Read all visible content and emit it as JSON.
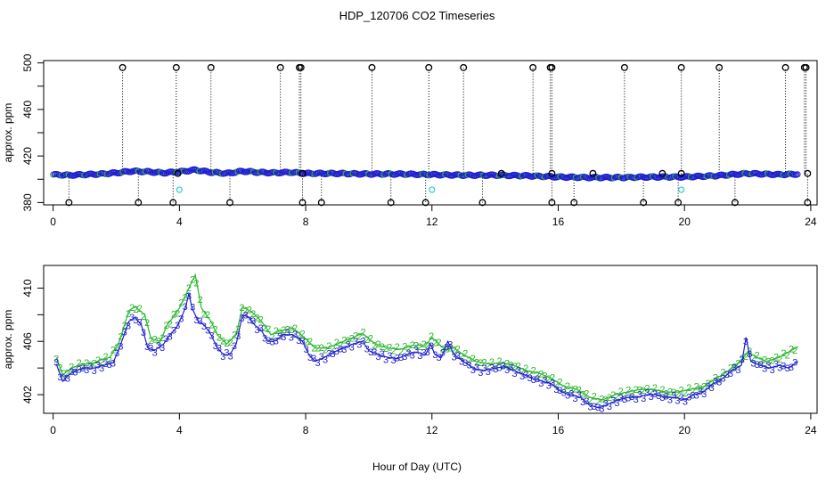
{
  "chart_data": [
    {
      "type": "scatter",
      "panel": "top",
      "title": "HDP_120706  CO2 Timeseries",
      "xlabel": "",
      "ylabel": "approx. ppm",
      "xlim": [
        -0.3,
        24.2
      ],
      "ylim": [
        378,
        502
      ],
      "xticks": [
        0,
        4,
        8,
        12,
        16,
        20,
        24
      ],
      "yticks": [
        380,
        420,
        460,
        500
      ],
      "yticks_minor": [
        400,
        440,
        480
      ],
      "colors": {
        "series_main": "#1f1fd0",
        "series_alt": "#2ab52a",
        "outlier": "#000000",
        "cyan": "#40d0d0"
      },
      "baseline": [
        [
          0.0,
          404.0
        ],
        [
          0.5,
          403.5
        ],
        [
          1.0,
          404.0
        ],
        [
          1.5,
          404.5
        ],
        [
          2.0,
          405.5
        ],
        [
          2.5,
          407.0
        ],
        [
          3.0,
          406.5
        ],
        [
          3.5,
          405.5
        ],
        [
          4.0,
          406.5
        ],
        [
          4.5,
          408.0
        ],
        [
          5.0,
          406.0
        ],
        [
          5.5,
          405.0
        ],
        [
          6.0,
          407.0
        ],
        [
          6.5,
          406.0
        ],
        [
          7.0,
          405.5
        ],
        [
          7.5,
          406.0
        ],
        [
          8.0,
          405.0
        ],
        [
          8.5,
          405.0
        ],
        [
          9.0,
          405.0
        ],
        [
          10.0,
          404.5
        ],
        [
          11.0,
          404.5
        ],
        [
          12.0,
          404.0
        ],
        [
          13.0,
          403.5
        ],
        [
          14.0,
          403.5
        ],
        [
          15.0,
          403.0
        ],
        [
          16.0,
          402.0
        ],
        [
          17.0,
          401.5
        ],
        [
          18.0,
          401.5
        ],
        [
          19.0,
          402.0
        ],
        [
          20.0,
          402.0
        ],
        [
          21.0,
          403.0
        ],
        [
          22.0,
          405.0
        ],
        [
          23.0,
          404.0
        ],
        [
          23.6,
          404.5
        ]
      ],
      "high_outliers": [
        2.2,
        3.9,
        5.0,
        7.2,
        7.8,
        7.85,
        10.1,
        11.9,
        13.0,
        15.2,
        15.75,
        15.8,
        18.1,
        19.9,
        21.1,
        23.2,
        23.8,
        23.85
      ],
      "low_outliers": [
        0.5,
        2.7,
        3.8,
        5.6,
        7.9,
        8.5,
        10.7,
        11.8,
        13.6,
        15.8,
        16.5,
        18.7,
        19.8,
        21.6,
        23.9
      ],
      "mid_outliers": [
        [
          3.95,
          405
        ],
        [
          14.2,
          405
        ],
        [
          15.8,
          405
        ],
        [
          17.1,
          405
        ],
        [
          19.3,
          405
        ],
        [
          19.9,
          405
        ],
        [
          23.9,
          405
        ],
        [
          7.9,
          405
        ]
      ],
      "cyan_points": [
        [
          4.0,
          391
        ],
        [
          12.0,
          391
        ],
        [
          19.9,
          391
        ]
      ]
    },
    {
      "type": "line",
      "panel": "bottom",
      "xlabel": "Hour of Day (UTC)",
      "ylabel": "approx. ppm",
      "xlim": [
        -0.3,
        24.2
      ],
      "ylim": [
        400.6,
        411.7
      ],
      "xticks": [
        0,
        4,
        8,
        12,
        16,
        20,
        24
      ],
      "yticks": [
        402,
        406,
        410
      ],
      "yticks_minor": [
        404,
        408
      ],
      "series": [
        {
          "name": "3",
          "marker": "3",
          "color": "#1f1fd0",
          "points": [
            [
              0.1,
              404.3
            ],
            [
              0.3,
              403.0
            ],
            [
              0.5,
              403.5
            ],
            [
              0.7,
              403.8
            ],
            [
              1.0,
              404.0
            ],
            [
              1.3,
              404.0
            ],
            [
              1.6,
              404.2
            ],
            [
              1.9,
              404.4
            ],
            [
              2.1,
              405.5
            ],
            [
              2.4,
              407.5
            ],
            [
              2.6,
              407.8
            ],
            [
              2.8,
              407.2
            ],
            [
              3.0,
              405.5
            ],
            [
              3.2,
              405.3
            ],
            [
              3.5,
              405.8
            ],
            [
              3.7,
              406.5
            ],
            [
              3.9,
              407.0
            ],
            [
              4.1,
              408.0
            ],
            [
              4.2,
              408.6
            ],
            [
              4.3,
              409.6
            ],
            [
              4.4,
              408.5
            ],
            [
              4.6,
              407.5
            ],
            [
              4.8,
              407.2
            ],
            [
              5.0,
              406.5
            ],
            [
              5.2,
              405.5
            ],
            [
              5.4,
              405.0
            ],
            [
              5.6,
              405.0
            ],
            [
              5.8,
              405.8
            ],
            [
              6.0,
              408.0
            ],
            [
              6.2,
              407.8
            ],
            [
              6.4,
              407.2
            ],
            [
              6.6,
              406.8
            ],
            [
              6.8,
              406.0
            ],
            [
              7.0,
              406.0
            ],
            [
              7.3,
              406.5
            ],
            [
              7.6,
              406.5
            ],
            [
              7.9,
              406.0
            ],
            [
              8.1,
              405.0
            ],
            [
              8.3,
              404.5
            ],
            [
              8.6,
              404.8
            ],
            [
              8.9,
              405.2
            ],
            [
              9.2,
              405.5
            ],
            [
              9.5,
              405.8
            ],
            [
              9.8,
              406.0
            ],
            [
              10.0,
              405.3
            ],
            [
              10.3,
              405.0
            ],
            [
              10.6,
              404.8
            ],
            [
              10.9,
              404.7
            ],
            [
              11.2,
              405.0
            ],
            [
              11.5,
              405.2
            ],
            [
              11.8,
              405.0
            ],
            [
              11.95,
              405.8
            ],
            [
              12.1,
              405.0
            ],
            [
              12.3,
              404.8
            ],
            [
              12.5,
              406.0
            ],
            [
              12.7,
              405.0
            ],
            [
              13.0,
              404.5
            ],
            [
              13.3,
              404.0
            ],
            [
              13.6,
              403.8
            ],
            [
              14.0,
              404.0
            ],
            [
              14.3,
              404.1
            ],
            [
              14.6,
              403.8
            ],
            [
              14.9,
              403.5
            ],
            [
              15.2,
              403.2
            ],
            [
              15.5,
              403.0
            ],
            [
              15.8,
              402.8
            ],
            [
              16.1,
              402.2
            ],
            [
              16.4,
              402.0
            ],
            [
              16.7,
              401.8
            ],
            [
              17.0,
              401.2
            ],
            [
              17.3,
              401.0
            ],
            [
              17.6,
              401.3
            ],
            [
              17.9,
              401.6
            ],
            [
              18.2,
              401.8
            ],
            [
              18.5,
              401.8
            ],
            [
              18.8,
              402.0
            ],
            [
              19.1,
              402.0
            ],
            [
              19.4,
              401.8
            ],
            [
              19.7,
              401.8
            ],
            [
              20.0,
              401.6
            ],
            [
              20.3,
              402.0
            ],
            [
              20.6,
              402.2
            ],
            [
              20.9,
              402.8
            ],
            [
              21.2,
              403.2
            ],
            [
              21.5,
              403.8
            ],
            [
              21.8,
              404.2
            ],
            [
              21.95,
              406.3
            ],
            [
              22.1,
              404.5
            ],
            [
              22.4,
              404.2
            ],
            [
              22.7,
              404.0
            ],
            [
              23.0,
              404.2
            ],
            [
              23.3,
              404.0
            ],
            [
              23.6,
              404.5
            ]
          ]
        },
        {
          "name": "2",
          "marker": "2",
          "color": "#2ab52a",
          "points": [
            [
              0.1,
              404.8
            ],
            [
              0.3,
              403.5
            ],
            [
              0.6,
              404.0
            ],
            [
              0.9,
              404.3
            ],
            [
              1.2,
              404.3
            ],
            [
              1.5,
              404.6
            ],
            [
              1.8,
              404.8
            ],
            [
              2.1,
              406.0
            ],
            [
              2.4,
              408.3
            ],
            [
              2.6,
              408.6
            ],
            [
              2.9,
              408.0
            ],
            [
              3.1,
              406.2
            ],
            [
              3.4,
              406.0
            ],
            [
              3.6,
              407.2
            ],
            [
              3.8,
              407.8
            ],
            [
              4.0,
              408.5
            ],
            [
              4.3,
              410.0
            ],
            [
              4.5,
              411.0
            ],
            [
              4.7,
              408.5
            ],
            [
              5.0,
              407.5
            ],
            [
              5.2,
              406.5
            ],
            [
              5.5,
              405.8
            ],
            [
              5.8,
              406.5
            ],
            [
              6.0,
              408.6
            ],
            [
              6.3,
              408.2
            ],
            [
              6.6,
              407.5
            ],
            [
              6.9,
              406.5
            ],
            [
              7.2,
              406.8
            ],
            [
              7.6,
              407.0
            ],
            [
              8.0,
              406.2
            ],
            [
              8.3,
              405.5
            ],
            [
              8.7,
              405.5
            ],
            [
              9.0,
              405.8
            ],
            [
              9.4,
              406.2
            ],
            [
              9.8,
              406.6
            ],
            [
              10.2,
              405.8
            ],
            [
              10.6,
              405.5
            ],
            [
              11.0,
              405.4
            ],
            [
              11.4,
              405.7
            ],
            [
              11.8,
              405.7
            ],
            [
              12.0,
              406.3
            ],
            [
              12.4,
              405.4
            ],
            [
              12.7,
              405.5
            ],
            [
              13.0,
              405.0
            ],
            [
              13.4,
              404.5
            ],
            [
              13.8,
              404.3
            ],
            [
              14.2,
              404.4
            ],
            [
              14.6,
              404.2
            ],
            [
              15.0,
              403.8
            ],
            [
              15.4,
              403.6
            ],
            [
              15.8,
              403.2
            ],
            [
              16.2,
              402.6
            ],
            [
              16.6,
              402.4
            ],
            [
              17.0,
              401.8
            ],
            [
              17.4,
              401.6
            ],
            [
              17.8,
              402.0
            ],
            [
              18.2,
              402.2
            ],
            [
              18.6,
              402.4
            ],
            [
              19.0,
              402.4
            ],
            [
              19.4,
              402.2
            ],
            [
              19.8,
              402.2
            ],
            [
              20.2,
              402.4
            ],
            [
              20.6,
              402.6
            ],
            [
              21.0,
              403.2
            ],
            [
              21.4,
              403.8
            ],
            [
              21.8,
              404.6
            ],
            [
              22.0,
              405.2
            ],
            [
              22.3,
              404.8
            ],
            [
              22.6,
              404.5
            ],
            [
              23.0,
              404.8
            ],
            [
              23.3,
              405.2
            ],
            [
              23.6,
              405.6
            ]
          ]
        }
      ]
    }
  ]
}
